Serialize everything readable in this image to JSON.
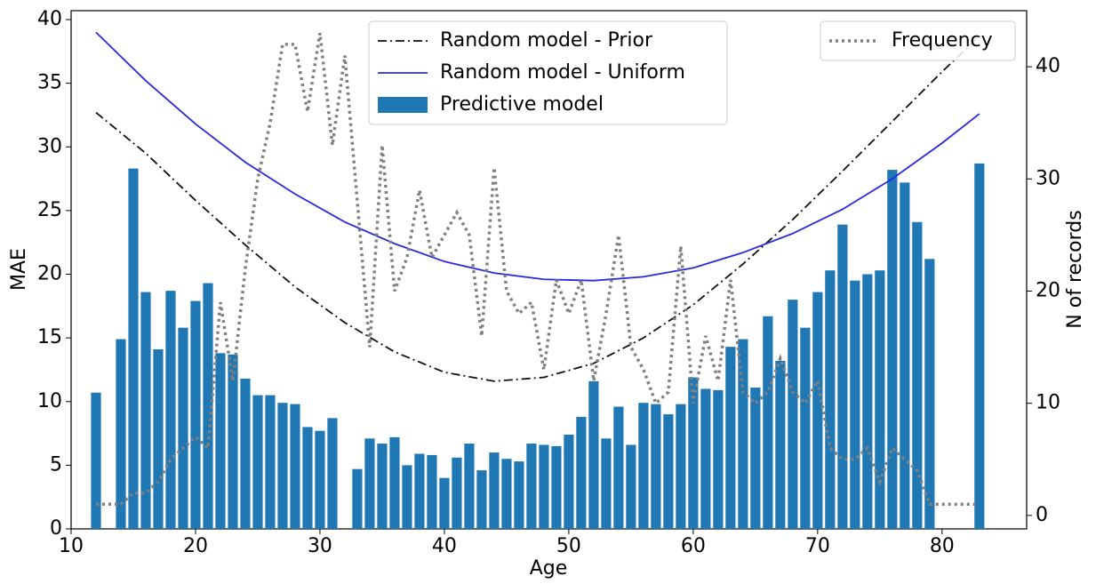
{
  "chart_data": {
    "type": "bar",
    "xlabel": "Age",
    "ylabel": "MAE",
    "y2label": "N of records",
    "xlim": [
      10,
      86.8
    ],
    "ylim": [
      0,
      40.7
    ],
    "y2lim": [
      -1.2,
      45
    ],
    "xticks": [
      10,
      20,
      30,
      40,
      50,
      60,
      70,
      80
    ],
    "yticks": [
      0,
      5,
      10,
      15,
      20,
      25,
      30,
      35,
      40
    ],
    "y2ticks": [
      0,
      10,
      20,
      30,
      40
    ],
    "legend": "upper center",
    "legend2": "upper right",
    "series": [
      {
        "name": "Random model - Prior",
        "type": "line",
        "style": "dashdot",
        "color": "#111111",
        "x": [
          12,
          16,
          20,
          24,
          28,
          32,
          36,
          40,
          44,
          48,
          52,
          56,
          60,
          64,
          68,
          72,
          76,
          80,
          83
        ],
        "values": [
          32.7,
          29.5,
          25.8,
          22.3,
          19.0,
          16.2,
          13.9,
          12.3,
          11.6,
          11.9,
          13.0,
          15.0,
          17.6,
          20.8,
          24.3,
          28.1,
          32.0,
          35.9,
          38.7
        ]
      },
      {
        "name": "Random model - Uniform",
        "type": "line",
        "style": "solid",
        "color": "#2929e0",
        "x": [
          12,
          16,
          20,
          24,
          28,
          32,
          36,
          40,
          44,
          48,
          52,
          56,
          60,
          64,
          68,
          72,
          76,
          80,
          83
        ],
        "values": [
          39.0,
          35.2,
          31.8,
          28.8,
          26.3,
          24.1,
          22.4,
          21.0,
          20.1,
          19.6,
          19.5,
          19.8,
          20.5,
          21.7,
          23.2,
          25.1,
          27.5,
          30.3,
          32.6
        ]
      },
      {
        "name": "Predictive model",
        "type": "bar",
        "color": "#1f77b4",
        "x": [
          12,
          14,
          15,
          16,
          17,
          18,
          19,
          20,
          21,
          22,
          23,
          24,
          25,
          26,
          27,
          28,
          29,
          30,
          31,
          33,
          34,
          35,
          36,
          37,
          38,
          39,
          40,
          41,
          42,
          43,
          44,
          45,
          46,
          47,
          48,
          49,
          50,
          51,
          52,
          53,
          54,
          55,
          56,
          57,
          58,
          59,
          60,
          61,
          62,
          63,
          64,
          65,
          66,
          67,
          68,
          69,
          70,
          71,
          72,
          73,
          74,
          75,
          76,
          77,
          78,
          79,
          83
        ],
        "values": [
          10.7,
          14.9,
          28.3,
          18.6,
          14.1,
          18.7,
          15.8,
          17.9,
          19.3,
          13.8,
          13.7,
          11.8,
          10.5,
          10.5,
          9.9,
          9.8,
          8.0,
          7.7,
          8.7,
          4.7,
          7.1,
          6.7,
          7.2,
          5.0,
          5.9,
          5.8,
          4.0,
          5.6,
          6.7,
          4.6,
          6.0,
          5.5,
          5.3,
          6.7,
          6.6,
          6.5,
          7.4,
          8.8,
          11.6,
          7.1,
          9.6,
          6.6,
          9.9,
          9.8,
          9.0,
          9.8,
          11.9,
          11.0,
          10.9,
          14.3,
          14.9,
          11.1,
          16.7,
          13.2,
          18.0,
          15.8,
          18.6,
          20.3,
          23.9,
          19.5,
          20.0,
          20.3,
          28.2,
          27.2,
          24.1,
          21.2,
          28.7
        ]
      },
      {
        "name": "Frequency",
        "type": "line",
        "style": "dotted",
        "color": "#808080",
        "axis": "y2",
        "x": [
          12,
          13,
          14,
          15,
          16,
          17,
          18,
          19,
          20,
          21,
          22,
          23,
          24,
          25,
          26,
          27,
          28,
          29,
          30,
          31,
          32,
          33,
          34,
          35,
          36,
          37,
          38,
          39,
          40,
          41,
          42,
          43,
          44,
          45,
          46,
          47,
          48,
          49,
          50,
          51,
          52,
          53,
          54,
          55,
          56,
          57,
          58,
          59,
          60,
          61,
          62,
          63,
          64,
          65,
          66,
          67,
          68,
          69,
          70,
          71,
          72,
          73,
          74,
          75,
          76,
          77,
          78,
          79,
          80,
          81,
          82,
          83
        ],
        "values": [
          1,
          1,
          1,
          2,
          2,
          3,
          5,
          6,
          7,
          6,
          19,
          12,
          22,
          30,
          35,
          42,
          42,
          36,
          43,
          33,
          41,
          28,
          15,
          33,
          20,
          23,
          29,
          23,
          25,
          27,
          25,
          16,
          31,
          20,
          18,
          19,
          13,
          21,
          18,
          21,
          12,
          18,
          25,
          15,
          13,
          10,
          11,
          24,
          10,
          16,
          12,
          21,
          11,
          10,
          11,
          14,
          11,
          10,
          12,
          6,
          5,
          5,
          6,
          3,
          6,
          5,
          4,
          1,
          1,
          1,
          1,
          1
        ]
      }
    ]
  }
}
